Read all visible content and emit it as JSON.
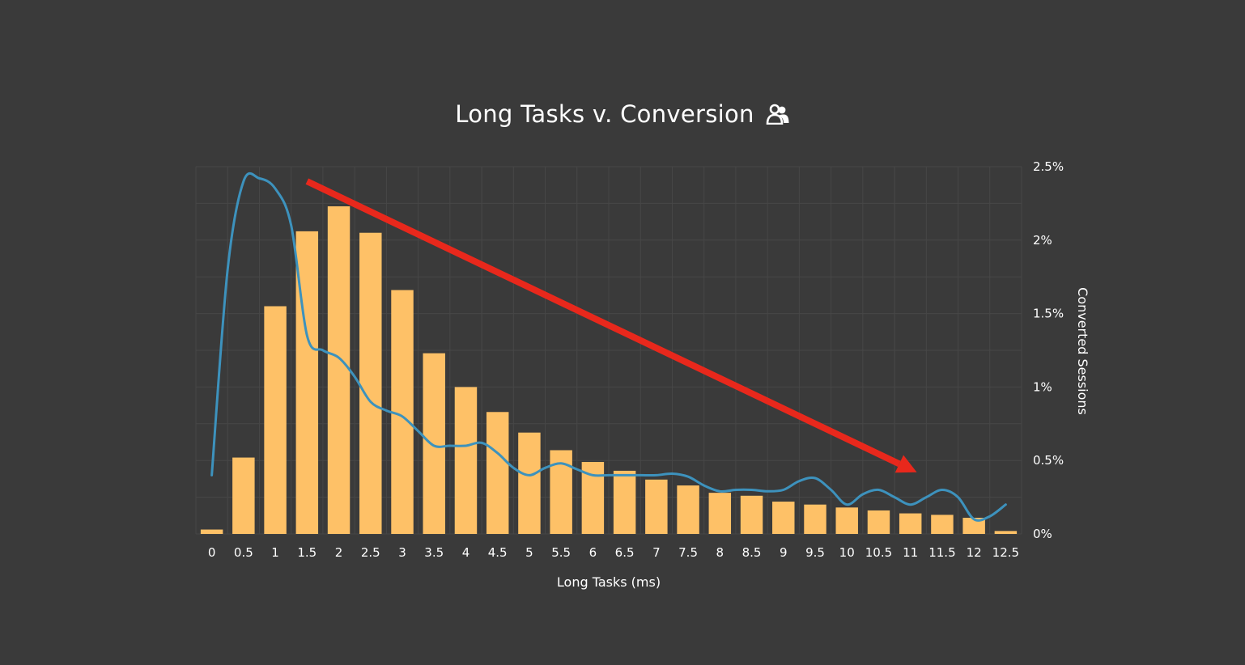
{
  "chart_data": {
    "type": "bar",
    "title": "Long Tasks v. Conversion",
    "xlabel": "Long Tasks (ms)",
    "ylabel": "Converted Sessions",
    "categories": [
      "0",
      "0.5",
      "1",
      "1.5",
      "2",
      "2.5",
      "3",
      "3.5",
      "4",
      "4.5",
      "5",
      "5.5",
      "6",
      "6.5",
      "7",
      "7.5",
      "8",
      "8.5",
      "9",
      "9.5",
      "10",
      "10.5",
      "11",
      "11.5",
      "12",
      "12.5"
    ],
    "y_ticks": [
      "0%",
      "0.5%",
      "1%",
      "1.5%",
      "2%",
      "2.5%"
    ],
    "ylim": [
      0,
      2.5
    ],
    "y_axis_position": "right",
    "grid": true,
    "colors": {
      "background": "#3a3a3a",
      "bars": "#fec167",
      "line": "#3d92bd",
      "arrow": "#e8281c",
      "grid": "#474747"
    },
    "series": [
      {
        "type": "bar",
        "values": [
          0.03,
          0.52,
          1.55,
          2.06,
          2.23,
          2.05,
          1.66,
          1.23,
          1.0,
          0.83,
          0.69,
          0.57,
          0.49,
          0.43,
          0.37,
          0.33,
          0.28,
          0.26,
          0.22,
          0.2,
          0.18,
          0.16,
          0.14,
          0.13,
          0.11,
          0.02
        ]
      },
      {
        "type": "line",
        "x": [
          0,
          0.25,
          0.5,
          0.75,
          1,
          1.25,
          1.5,
          1.75,
          2,
          2.25,
          2.5,
          2.75,
          3,
          3.25,
          3.5,
          3.75,
          4,
          4.25,
          4.5,
          4.75,
          5,
          5.25,
          5.5,
          5.75,
          6,
          6.25,
          6.5,
          6.75,
          7,
          7.25,
          7.5,
          7.75,
          8,
          8.25,
          8.5,
          8.75,
          9,
          9.25,
          9.5,
          9.75,
          10,
          10.25,
          10.5,
          10.75,
          11,
          11.25,
          11.5,
          11.75,
          12,
          12.25,
          12.5
        ],
        "values": [
          0.4,
          1.8,
          2.4,
          2.42,
          2.35,
          2.1,
          1.35,
          1.25,
          1.2,
          1.07,
          0.9,
          0.84,
          0.8,
          0.7,
          0.6,
          0.6,
          0.6,
          0.62,
          0.55,
          0.45,
          0.4,
          0.45,
          0.48,
          0.44,
          0.4,
          0.4,
          0.4,
          0.4,
          0.4,
          0.41,
          0.39,
          0.33,
          0.29,
          0.3,
          0.3,
          0.29,
          0.3,
          0.36,
          0.38,
          0.3,
          0.2,
          0.27,
          0.3,
          0.25,
          0.2,
          0.25,
          0.3,
          0.25,
          0.1,
          0.12,
          0.2
        ]
      }
    ],
    "annotation": {
      "type": "arrow",
      "from": [
        1.5,
        2.4
      ],
      "to": [
        11.1,
        0.42
      ]
    }
  },
  "icons": {
    "title_icon": "users-icon"
  }
}
